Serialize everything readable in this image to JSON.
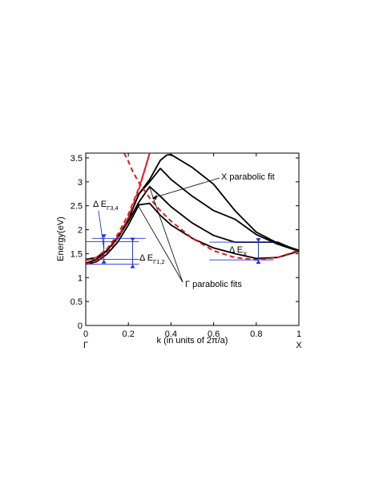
{
  "chart_data": {
    "type": "line",
    "title": "",
    "xlabel": "k (in units of 2π/a)",
    "ylabel": "Energy(eV)",
    "xlim": [
      0,
      1
    ],
    "ylim": [
      0,
      3.6
    ],
    "xticks": [
      "0",
      "0.2",
      "0.4",
      "0.6",
      "0.8",
      "1"
    ],
    "xtick_values": [
      0,
      0.2,
      0.4,
      0.6,
      0.8,
      1
    ],
    "yticks": [
      "0",
      "0.5",
      "1",
      "1.5",
      "2",
      "2.5",
      "3",
      "3.5"
    ],
    "ytick_values": [
      0,
      0.5,
      1,
      1.5,
      2,
      2.5,
      3,
      3.5
    ],
    "point_labels": [
      {
        "text": "Γ",
        "x": 0
      },
      {
        "text": "X",
        "x": 1
      }
    ],
    "grid": false,
    "colors": {
      "bands": "#000000",
      "fits": "#e41a1c",
      "annotations": "#1f35d6"
    },
    "series": [
      {
        "style": "black-solid",
        "x": [
          0,
          0.05,
          0.1,
          0.15,
          0.2,
          0.25,
          0.3,
          0.35,
          0.4,
          0.5,
          0.6,
          0.7,
          0.8,
          0.9,
          1
        ],
        "y": [
          1.28,
          1.33,
          1.49,
          1.74,
          2.1,
          2.52,
          2.55,
          2.3,
          2.1,
          1.82,
          1.62,
          1.5,
          1.4,
          1.42,
          1.55
        ]
      },
      {
        "style": "black-solid",
        "x": [
          0,
          0.05,
          0.1,
          0.15,
          0.2,
          0.25,
          0.3,
          0.35,
          0.4,
          0.5,
          0.6,
          0.7,
          0.8,
          0.9,
          1
        ],
        "y": [
          1.38,
          1.42,
          1.57,
          1.82,
          2.18,
          2.58,
          2.9,
          2.7,
          2.48,
          2.14,
          1.88,
          1.74,
          1.74,
          1.74,
          1.55
        ]
      },
      {
        "style": "black-solid",
        "x": [
          0,
          0.05,
          0.1,
          0.15,
          0.2,
          0.25,
          0.3,
          0.35,
          0.4,
          0.5,
          0.6,
          0.7,
          0.8,
          0.9,
          1
        ],
        "y": [
          1.3,
          1.38,
          1.56,
          1.84,
          2.22,
          2.75,
          3.0,
          3.28,
          3.05,
          2.7,
          2.4,
          2.22,
          1.9,
          1.7,
          1.55
        ]
      },
      {
        "style": "black-solid",
        "x": [
          0,
          0.05,
          0.1,
          0.15,
          0.2,
          0.25,
          0.3,
          0.35,
          0.38,
          0.4,
          0.5,
          0.6,
          0.7,
          0.8,
          0.9,
          1
        ],
        "y": [
          1.3,
          1.38,
          1.56,
          1.84,
          2.22,
          2.75,
          3.05,
          3.45,
          3.56,
          3.57,
          3.3,
          2.95,
          2.4,
          1.95,
          1.72,
          1.57
        ]
      },
      {
        "style": "red-dashed",
        "x": [
          0,
          0.05,
          0.1,
          0.15,
          0.2,
          0.25,
          0.28,
          0.3
        ],
        "y": [
          1.28,
          1.35,
          1.52,
          1.82,
          2.25,
          2.85,
          3.3,
          3.6
        ]
      },
      {
        "style": "red-dashed",
        "x": [
          0,
          0.05,
          0.1,
          0.15,
          0.2,
          0.25,
          0.28,
          0.3
        ],
        "y": [
          1.36,
          1.42,
          1.6,
          1.9,
          2.32,
          2.88,
          3.3,
          3.6
        ]
      },
      {
        "style": "red-dashed",
        "x": [
          0.18,
          0.2,
          0.22,
          0.25,
          0.3,
          0.35,
          0.4,
          0.5,
          0.6,
          0.7,
          0.8,
          0.9,
          1
        ],
        "y": [
          3.6,
          3.43,
          3.22,
          2.98,
          2.66,
          2.4,
          2.18,
          1.82,
          1.56,
          1.42,
          1.37,
          1.42,
          1.57
        ]
      }
    ],
    "annotations": {
      "delta_gamma_12": {
        "label": "Δ E",
        "sub": "Γ1,2"
      },
      "delta_gamma_34": {
        "label": "Δ E",
        "sub": "Γ3,4"
      },
      "delta_x": {
        "label": "Δ E",
        "sub": "X"
      },
      "x_fit": "X parabolic fit",
      "gamma_fits": "Γ parabolic fits"
    }
  }
}
